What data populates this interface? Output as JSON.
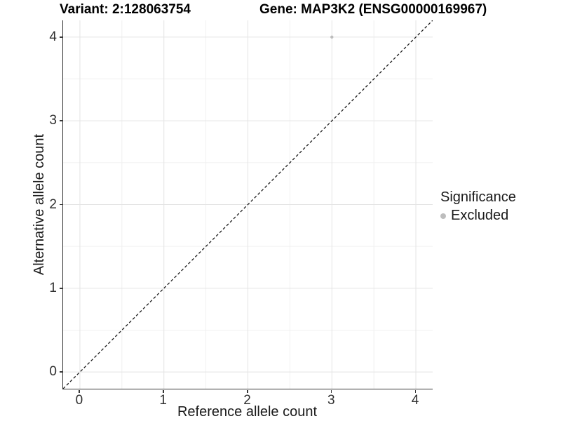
{
  "title": {
    "variant": "Variant: 2:128063754",
    "gene": "Gene: MAP3K2 (ENSG00000169967)"
  },
  "axes": {
    "x_label": "Reference allele count",
    "y_label": "Alternative allele count"
  },
  "legend": {
    "title": "Significance",
    "items": [
      {
        "label": "Excluded",
        "color": "#bdbdbd"
      }
    ]
  },
  "colors": {
    "grid_major": "#e4e4e4",
    "grid_minor": "#f0f0f0",
    "axis_line": "#383838",
    "reference_line": "#1a1a1a",
    "point": "#bdbdbd",
    "background": "#ffffff"
  },
  "chart_data": {
    "type": "scatter",
    "title": "Variant: 2:128063754 | Gene: MAP3K2 (ENSG00000169967)",
    "xlabel": "Reference allele count",
    "ylabel": "Alternative allele count",
    "xlim": [
      -0.2,
      4.2
    ],
    "ylim": [
      -0.2,
      4.2
    ],
    "x_ticks": [
      0,
      1,
      2,
      3,
      4
    ],
    "y_ticks": [
      0,
      1,
      2,
      3,
      4
    ],
    "x_minor_ticks": [
      0.5,
      1.5,
      2.5,
      3.5
    ],
    "y_minor_ticks": [
      0.5,
      1.5,
      2.5,
      3.5
    ],
    "grid": true,
    "legend_position": "right",
    "series": [
      {
        "name": "Excluded",
        "color": "#bdbdbd",
        "point_radius": 2.2,
        "points": [
          {
            "x": 3,
            "y": 4
          }
        ]
      }
    ],
    "reference_line": {
      "type": "identity",
      "style": "dashed",
      "from": -0.2,
      "to": 4.2,
      "color": "#1a1a1a"
    }
  }
}
